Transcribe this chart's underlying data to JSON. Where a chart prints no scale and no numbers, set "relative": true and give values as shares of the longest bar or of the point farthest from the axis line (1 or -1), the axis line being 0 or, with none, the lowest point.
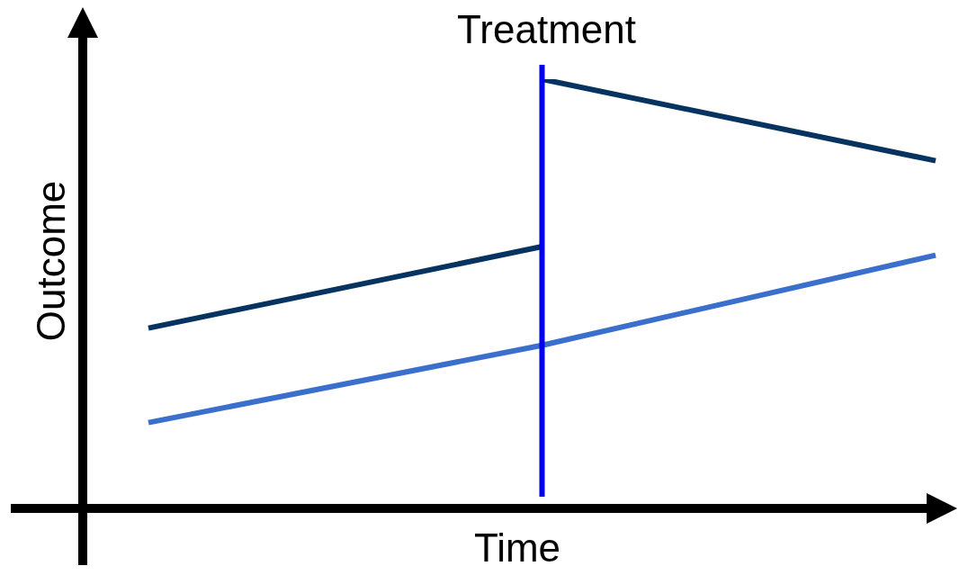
{
  "chart_data": {
    "type": "line",
    "relative": true,
    "xlabel": "Time",
    "ylabel": "Outcome",
    "categories": [
      null,
      null,
      null
    ],
    "series": [
      {
        "color": "#06335f",
        "values": [
          0.42,
          0.61,
          null
        ]
      },
      {
        "color": "#06335f",
        "values": [
          null,
          1,
          0.81
        ]
      },
      {
        "color": "#3b6fcc",
        "values": [
          0.2,
          0.38,
          0.59
        ]
      }
    ],
    "ref_lines": [
      {
        "axis": "x",
        "label": "Treatment",
        "color": "#0000ee"
      }
    ],
    "marker": "none",
    "legend": false
  }
}
